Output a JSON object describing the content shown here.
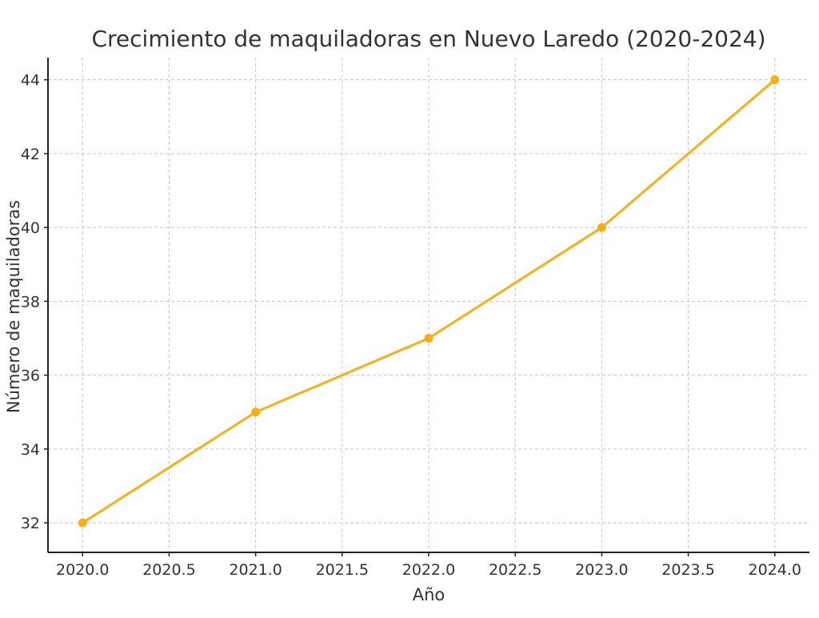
{
  "chart_data": {
    "type": "line",
    "title": "Crecimiento de maquiladoras en Nuevo Laredo (2020-2024)",
    "xlabel": "Año",
    "ylabel": "Número de maquiladoras",
    "x": [
      2020,
      2021,
      2022,
      2023,
      2024
    ],
    "series": [
      {
        "values": [
          32,
          35,
          37,
          40,
          44
        ]
      }
    ],
    "xlim": [
      2019.8,
      2024.2
    ],
    "ylim": [
      31.2,
      44.6
    ],
    "xticks": [
      "2020.0",
      "2020.5",
      "2021.0",
      "2021.5",
      "2022.0",
      "2022.5",
      "2023.0",
      "2023.5",
      "2024.0"
    ],
    "yticks": [
      "32",
      "34",
      "36",
      "38",
      "40",
      "42",
      "44"
    ],
    "grid": true,
    "marker": "circle",
    "line_color": "#f5b01a"
  }
}
